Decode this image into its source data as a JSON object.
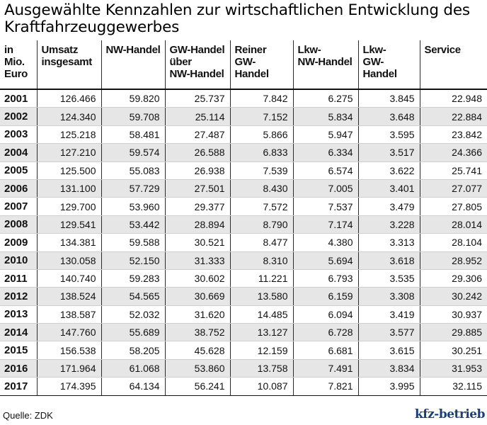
{
  "title": "Ausgewählte Kennzahlen zur wirtschaftlichen Entwicklung des Kraftfahrzeuggewerbes",
  "table": {
    "headers": [
      "in Mio.\nEuro",
      "Umsatz\ninsgesamt",
      "NW-Handel",
      "GW-Handel\nüber\nNW-Handel",
      "Reiner\nGW-Handel",
      "Lkw-\nNW-Handel",
      "Lkw-\nGW-Handel",
      "Service"
    ],
    "rows": [
      [
        "2001",
        "126.466",
        "59.820",
        "25.737",
        "7.842",
        "6.275",
        "3.845",
        "22.948"
      ],
      [
        "2002",
        "124.340",
        "59.708",
        "25.114",
        "7.152",
        "5.834",
        "3.648",
        "22.884"
      ],
      [
        "2003",
        "125.218",
        "58.481",
        "27.487",
        "5.866",
        "5.947",
        "3.595",
        "23.842"
      ],
      [
        "2004",
        "127.210",
        "59.574",
        "26.588",
        "6.833",
        "6.334",
        "3.517",
        "24.366"
      ],
      [
        "2005",
        "125.500",
        "55.083",
        "26.938",
        "7.539",
        "6.574",
        "3.622",
        "25.741"
      ],
      [
        "2006",
        "131.100",
        "57.729",
        "27.501",
        "8.430",
        "7.005",
        "3.401",
        "27.077"
      ],
      [
        "2007",
        "129.700",
        "53.960",
        "29.377",
        "7.572",
        "7.537",
        "3.479",
        "27.805"
      ],
      [
        "2008",
        "129.541",
        "53.442",
        "28.894",
        "8.790",
        "7.174",
        "3.228",
        "28.014"
      ],
      [
        "2009",
        "134.381",
        "59.588",
        "30.521",
        "8.477",
        "4.380",
        "3.313",
        "28.104"
      ],
      [
        "2010",
        "130.058",
        "52.150",
        "31.333",
        "8.310",
        "5.694",
        "3.618",
        "28.952"
      ],
      [
        "2011",
        "140.740",
        "59.283",
        "30.602",
        "11.221",
        "6.793",
        "3.535",
        "29.306"
      ],
      [
        "2012",
        "138.524",
        "54.565",
        "30.669",
        "13.580",
        "6.159",
        "3.308",
        "30.242"
      ],
      [
        "2013",
        "138.587",
        "52.032",
        "31.620",
        "14.485",
        "6.094",
        "3.419",
        "30.937"
      ],
      [
        "2014",
        "147.760",
        "55.689",
        "38.752",
        "13.127",
        "6.728",
        "3.577",
        "29.885"
      ],
      [
        "2015",
        "156.538",
        "58.205",
        "45.628",
        "12.159",
        "6.681",
        "3.615",
        "30.251"
      ],
      [
        "2016",
        "171.964",
        "61.068",
        "53.860",
        "13.758",
        "7.491",
        "3.834",
        "31.953"
      ],
      [
        "2017",
        "174.395",
        "64.134",
        "56.241",
        "10.087",
        "7.821",
        "3.995",
        "32.115"
      ]
    ]
  },
  "footer": {
    "source": "Quelle: ZDK",
    "logo": "kfz-betrieb"
  },
  "colors": {
    "zebra": "#e6e6e6",
    "logo": "#1b3e7a"
  }
}
